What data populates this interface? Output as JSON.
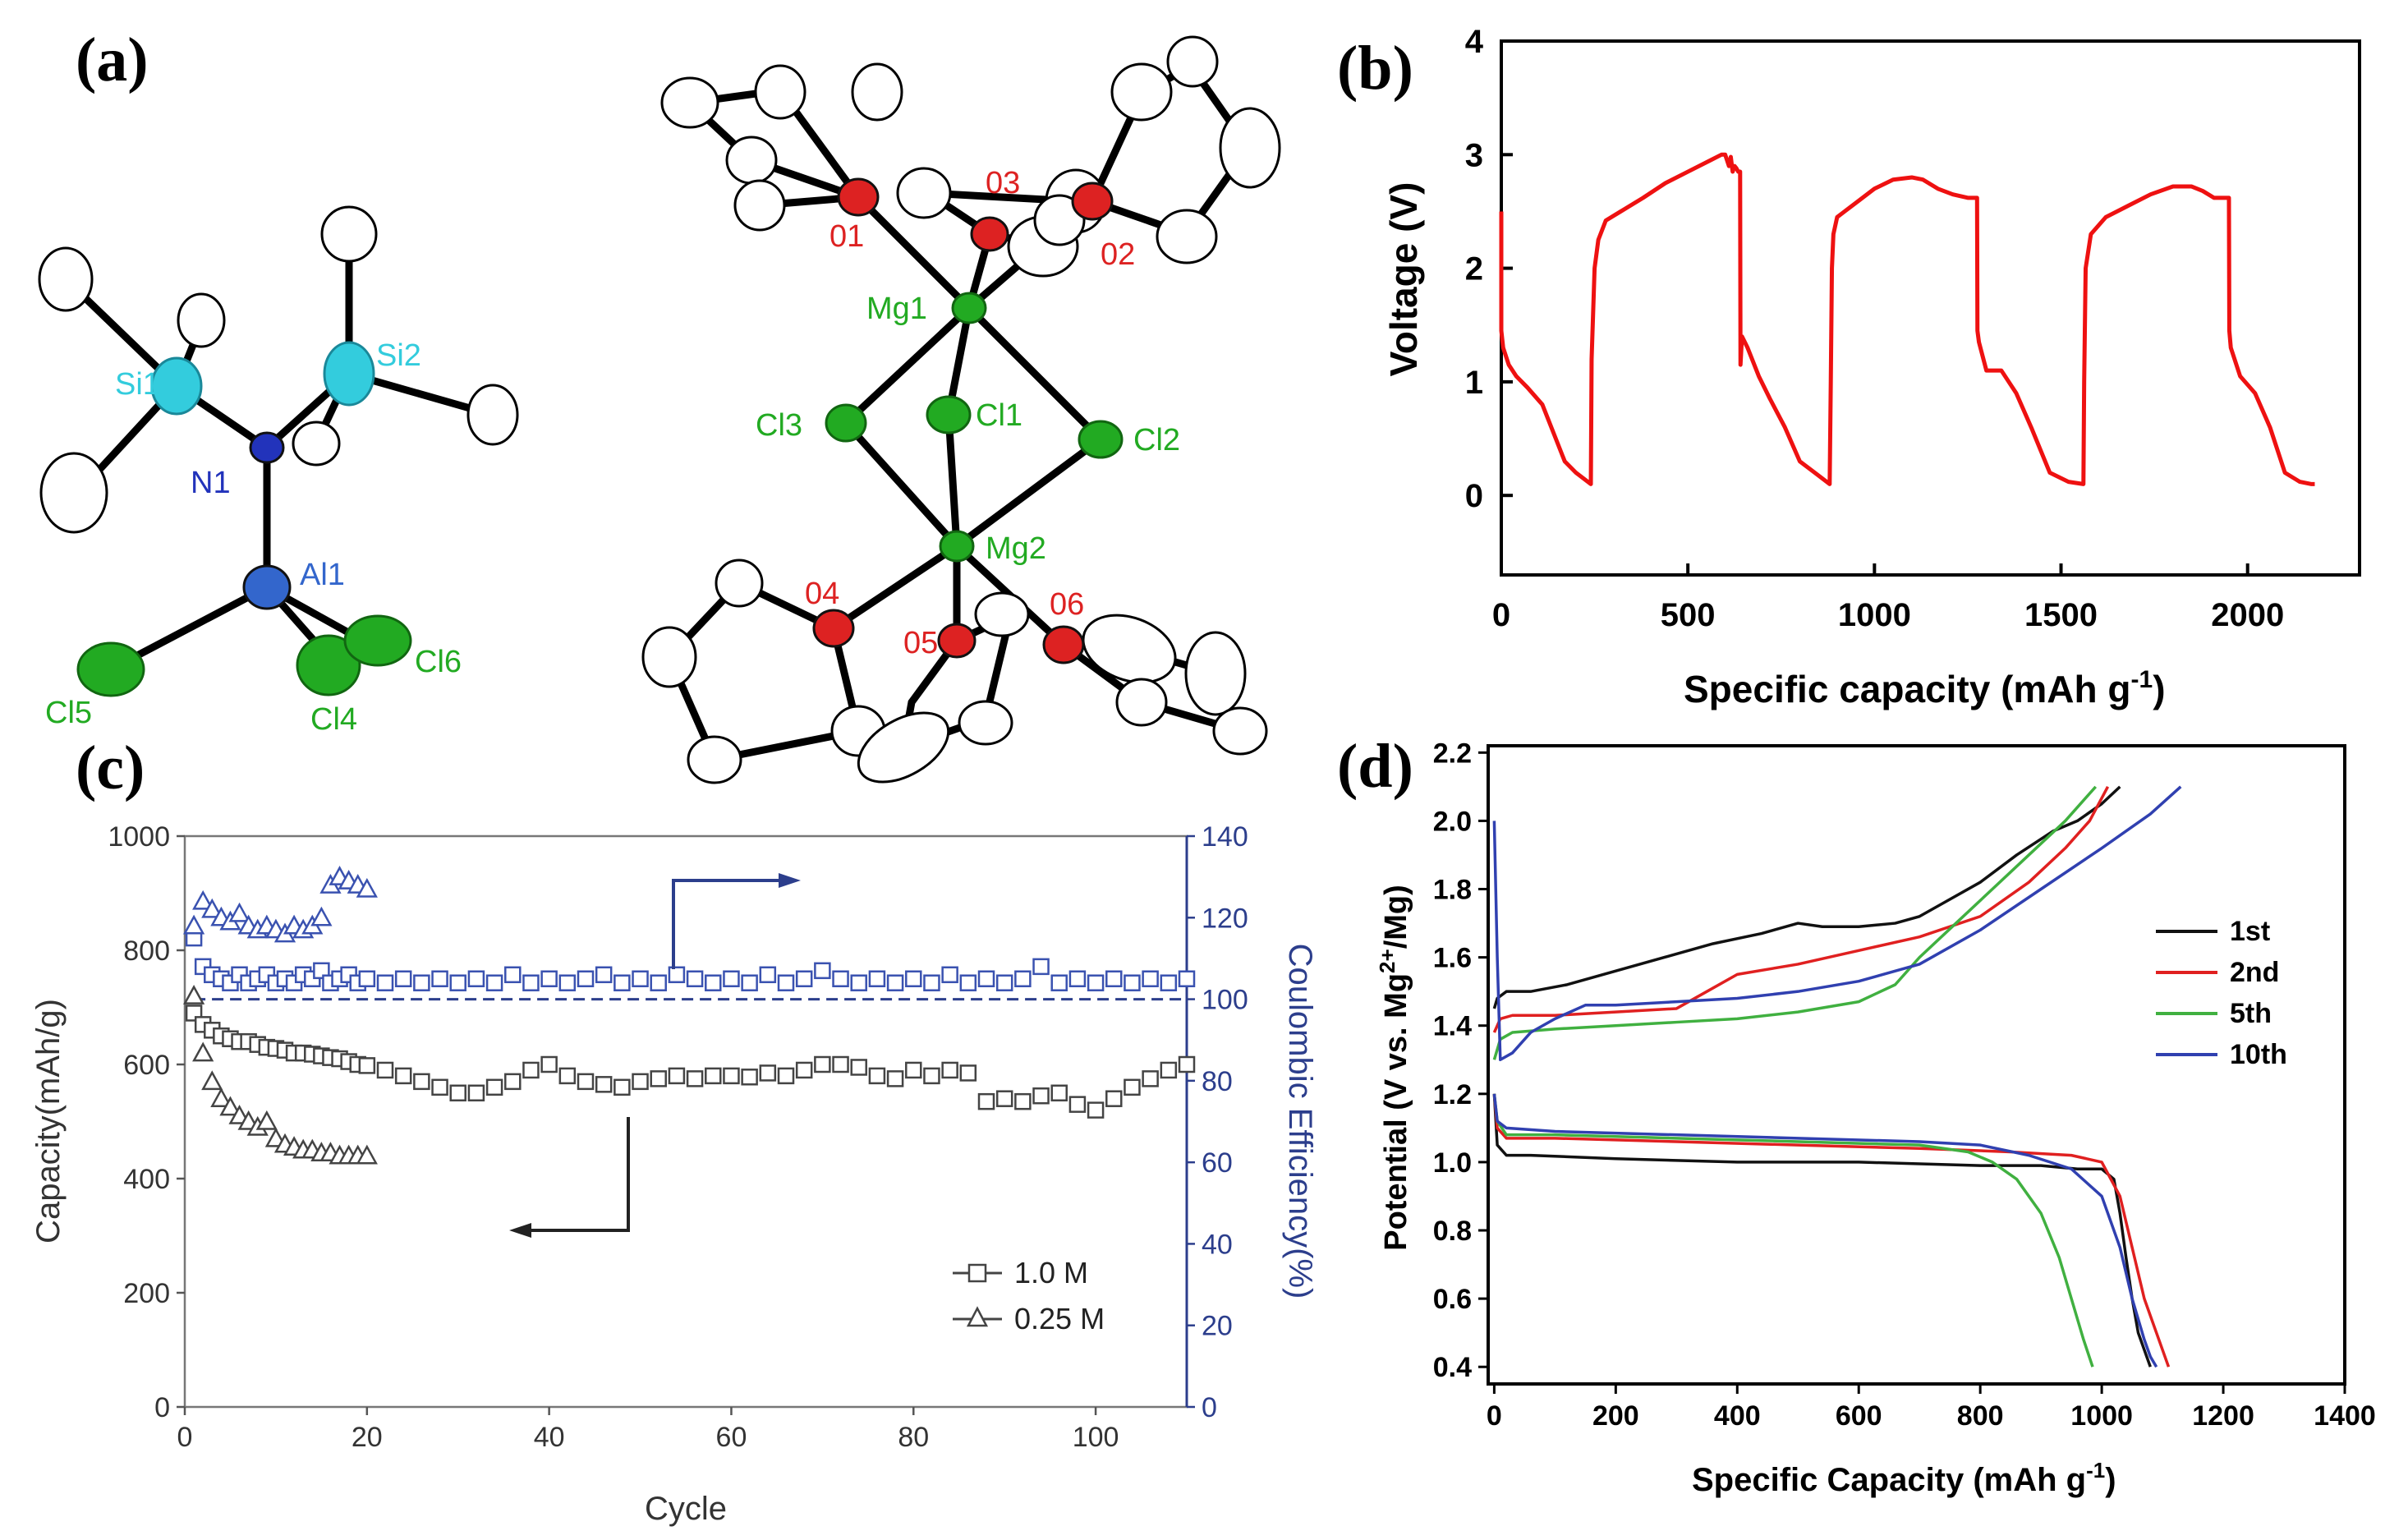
{
  "panels": {
    "a": "(a)",
    "b": "(b)",
    "c": "(c)",
    "d": "(d)"
  },
  "structure_left": {
    "atoms": [
      {
        "label": "Si1",
        "color": "#33ccdd"
      },
      {
        "label": "Si2",
        "color": "#33ccdd"
      },
      {
        "label": "N1",
        "color": "#2233bb"
      },
      {
        "label": "Al1",
        "color": "#3366cc"
      },
      {
        "label": "Cl5",
        "color": "#22aa22"
      },
      {
        "label": "Cl4",
        "color": "#22aa22"
      },
      {
        "label": "Cl6",
        "color": "#22aa22"
      }
    ]
  },
  "structure_right": {
    "atoms": [
      {
        "label": "01",
        "color": "#dd2222"
      },
      {
        "label": "03",
        "color": "#dd2222"
      },
      {
        "label": "02",
        "color": "#dd2222"
      },
      {
        "label": "Mg1",
        "color": "#22aa22"
      },
      {
        "label": "Cl3",
        "color": "#22aa22"
      },
      {
        "label": "Cl1",
        "color": "#22aa22"
      },
      {
        "label": "Cl2",
        "color": "#22aa22"
      },
      {
        "label": "Mg2",
        "color": "#22aa22"
      },
      {
        "label": "04",
        "color": "#dd2222"
      },
      {
        "label": "05",
        "color": "#dd2222"
      },
      {
        "label": "06",
        "color": "#dd2222"
      }
    ]
  },
  "chart_data": [
    {
      "id": "b",
      "type": "line",
      "xlabel": "Specific capacity (mAh g",
      "xlabel_sup": "-1",
      "xlabel_end": ")",
      "ylabel": "Voltage (V)",
      "xlim": [
        0,
        2300
      ],
      "ylim": [
        -0.7,
        4
      ],
      "xticks": [
        "0",
        "500",
        "1000",
        "1500",
        "2000"
      ],
      "xtick_values": [
        0,
        500,
        1000,
        1500,
        2000
      ],
      "yticks": [
        "0",
        "1",
        "2",
        "3",
        "4"
      ],
      "ytick_values": [
        0,
        1,
        2,
        3,
        4
      ],
      "color": "#ee1111",
      "x": [
        0,
        0,
        5,
        20,
        40,
        70,
        110,
        140,
        170,
        200,
        240,
        242,
        250,
        260,
        280,
        320,
        380,
        440,
        500,
        560,
        590,
        600,
        610,
        615,
        620,
        625,
        630,
        635,
        640,
        641,
        645,
        660,
        690,
        720,
        760,
        800,
        840,
        880,
        883,
        886,
        890,
        900,
        920,
        960,
        1000,
        1050,
        1100,
        1130,
        1170,
        1210,
        1250,
        1275,
        1276,
        1280,
        1300,
        1340,
        1380,
        1420,
        1470,
        1520,
        1560,
        1562,
        1566,
        1580,
        1620,
        1680,
        1740,
        1800,
        1850,
        1880,
        1910,
        1950,
        1951,
        1955,
        1980,
        2020,
        2060,
        2100,
        2140,
        2170,
        2180
      ],
      "y": [
        2.5,
        1.45,
        1.3,
        1.15,
        1.05,
        0.95,
        0.8,
        0.55,
        0.3,
        0.2,
        0.1,
        1.2,
        2.0,
        2.25,
        2.42,
        2.5,
        2.62,
        2.75,
        2.85,
        2.95,
        3.0,
        3.0,
        2.9,
        2.98,
        2.85,
        2.9,
        2.88,
        2.85,
        2.85,
        1.15,
        1.4,
        1.3,
        1.05,
        0.85,
        0.6,
        0.3,
        0.2,
        0.1,
        1.0,
        2.0,
        2.3,
        2.45,
        2.5,
        2.6,
        2.7,
        2.78,
        2.8,
        2.78,
        2.7,
        2.65,
        2.62,
        2.62,
        1.45,
        1.35,
        1.1,
        1.1,
        0.9,
        0.6,
        0.2,
        0.12,
        0.1,
        1.0,
        2.0,
        2.3,
        2.45,
        2.55,
        2.65,
        2.72,
        2.72,
        2.68,
        2.62,
        2.62,
        1.45,
        1.3,
        1.05,
        0.9,
        0.6,
        0.2,
        0.12,
        0.1,
        0.1
      ]
    },
    {
      "id": "c",
      "type": "scatter",
      "xlabel": "Cycle",
      "ylabel": "Capacity(mAh/g)",
      "y2label": "Coulombic Efficiency(%)",
      "xlim": [
        0,
        110
      ],
      "ylim": [
        0,
        1000
      ],
      "y2lim": [
        0,
        140
      ],
      "xticks": [
        "0",
        "20",
        "40",
        "60",
        "80",
        "100"
      ],
      "xtick_values": [
        0,
        20,
        40,
        60,
        80,
        100
      ],
      "yticks": [
        "0",
        "200",
        "400",
        "600",
        "800",
        "1000"
      ],
      "ytick_values": [
        0,
        200,
        400,
        600,
        800,
        1000
      ],
      "y2ticks": [
        "0",
        "20",
        "40",
        "60",
        "80",
        "100",
        "120",
        "140"
      ],
      "y2tick_values": [
        0,
        20,
        40,
        60,
        80,
        100,
        120,
        140
      ],
      "efficiency_reference": 100,
      "legend": [
        {
          "marker": "square",
          "label": "1.0 M"
        },
        {
          "marker": "triangle",
          "label": "0.25 M"
        }
      ],
      "series": [
        {
          "name": "1.0 M capacity",
          "axis": "left",
          "marker": "square",
          "color": "#444444",
          "x": [
            1,
            2,
            3,
            4,
            5,
            6,
            7,
            8,
            9,
            10,
            11,
            12,
            13,
            14,
            15,
            16,
            17,
            18,
            19,
            20,
            22,
            24,
            26,
            28,
            30,
            32,
            34,
            36,
            38,
            40,
            42,
            44,
            46,
            48,
            50,
            52,
            54,
            56,
            58,
            60,
            62,
            64,
            66,
            68,
            70,
            72,
            74,
            76,
            78,
            80,
            82,
            84,
            86,
            88,
            90,
            92,
            94,
            96,
            98,
            100,
            102,
            104,
            106,
            108,
            110
          ],
          "y": [
            690,
            670,
            660,
            650,
            645,
            640,
            640,
            635,
            630,
            628,
            625,
            620,
            620,
            618,
            615,
            612,
            610,
            605,
            600,
            598,
            590,
            580,
            570,
            560,
            550,
            550,
            560,
            570,
            590,
            600,
            580,
            570,
            565,
            560,
            570,
            575,
            580,
            575,
            580,
            580,
            578,
            585,
            580,
            590,
            600,
            600,
            595,
            580,
            575,
            590,
            580,
            590,
            585,
            535,
            540,
            535,
            545,
            550,
            530,
            520,
            540,
            560,
            575,
            590,
            600
          ]
        },
        {
          "name": "0.25 M capacity",
          "axis": "left",
          "marker": "triangle",
          "color": "#444444",
          "x": [
            1,
            2,
            3,
            4,
            5,
            6,
            7,
            8,
            9,
            10,
            11,
            12,
            13,
            14,
            15,
            16,
            17,
            18,
            19,
            20
          ],
          "y": [
            720,
            620,
            570,
            540,
            525,
            510,
            500,
            490,
            500,
            470,
            460,
            455,
            450,
            450,
            445,
            445,
            440,
            440,
            440,
            440
          ]
        },
        {
          "name": "1.0 M efficiency",
          "axis": "right",
          "marker": "square",
          "color": "#3a52b0",
          "x": [
            1,
            2,
            3,
            4,
            5,
            6,
            7,
            8,
            9,
            10,
            11,
            12,
            13,
            14,
            15,
            16,
            17,
            18,
            19,
            20,
            22,
            24,
            26,
            28,
            30,
            32,
            34,
            36,
            38,
            40,
            42,
            44,
            46,
            48,
            50,
            52,
            54,
            56,
            58,
            60,
            62,
            64,
            66,
            68,
            70,
            72,
            74,
            76,
            78,
            80,
            82,
            84,
            86,
            88,
            90,
            92,
            94,
            96,
            98,
            100,
            102,
            104,
            106,
            108,
            110
          ],
          "y": [
            115,
            108,
            106,
            105,
            104,
            106,
            104,
            105,
            106,
            104,
            105,
            104,
            106,
            105,
            107,
            104,
            105,
            106,
            104,
            105,
            104,
            105,
            104,
            105,
            104,
            105,
            104,
            106,
            104,
            105,
            104,
            105,
            106,
            104,
            105,
            104,
            106,
            105,
            104,
            105,
            104,
            106,
            104,
            105,
            107,
            105,
            104,
            105,
            104,
            105,
            104,
            106,
            104,
            105,
            104,
            105,
            108,
            104,
            105,
            104,
            105,
            104,
            105,
            104,
            105
          ]
        },
        {
          "name": "0.25 M efficiency",
          "axis": "right",
          "marker": "triangle",
          "color": "#3a52b0",
          "x": [
            1,
            2,
            3,
            4,
            5,
            6,
            7,
            8,
            9,
            10,
            11,
            12,
            13,
            14,
            15,
            16,
            17,
            18,
            19,
            20
          ],
          "y": [
            118,
            124,
            122,
            120,
            119,
            121,
            118,
            117,
            118,
            117,
            116,
            118,
            117,
            118,
            120,
            128,
            130,
            129,
            128,
            127
          ]
        }
      ]
    },
    {
      "id": "d",
      "type": "line",
      "xlabel": "Specific Capacity (mAh g",
      "xlabel_sup": "-1",
      "xlabel_end": ")",
      "ylabel": "Potential (V vs. Mg",
      "ylabel_sup": "2+",
      "ylabel_end": "/Mg)",
      "xlim": [
        -10,
        1400
      ],
      "ylim": [
        0.35,
        2.22
      ],
      "xticks": [
        "0",
        "200",
        "400",
        "600",
        "800",
        "1000",
        "1200",
        "1400"
      ],
      "xtick_values": [
        0,
        200,
        400,
        600,
        800,
        1000,
        1200,
        1400
      ],
      "yticks": [
        "0.4",
        "0.6",
        "0.8",
        "1.0",
        "1.2",
        "1.4",
        "1.6",
        "1.8",
        "2.0",
        "2.2"
      ],
      "ytick_values": [
        0.4,
        0.6,
        0.8,
        1.0,
        1.2,
        1.4,
        1.6,
        1.8,
        2.0,
        2.2
      ],
      "legend": [
        {
          "label": "1st",
          "color": "#111111"
        },
        {
          "label": "2nd",
          "color": "#e02020"
        },
        {
          "label": "5th",
          "color": "#40b040"
        },
        {
          "label": "10th",
          "color": "#3040b0"
        }
      ],
      "series": [
        {
          "name": "1st",
          "color": "#111111",
          "charge_x": [
            0,
            5,
            20,
            60,
            120,
            200,
            280,
            360,
            440,
            500,
            540,
            600,
            660,
            700,
            740,
            800,
            860,
            920,
            960,
            1000,
            1030
          ],
          "charge_y": [
            1.45,
            1.48,
            1.5,
            1.5,
            1.52,
            1.56,
            1.6,
            1.64,
            1.67,
            1.7,
            1.69,
            1.69,
            1.7,
            1.72,
            1.76,
            1.82,
            1.9,
            1.97,
            2.0,
            2.05,
            2.1
          ],
          "discharge_x": [
            0,
            5,
            20,
            60,
            200,
            400,
            600,
            800,
            900,
            960,
            1000,
            1020,
            1030,
            1040,
            1050,
            1060,
            1070,
            1080
          ],
          "discharge_y": [
            1.2,
            1.05,
            1.02,
            1.02,
            1.01,
            1.0,
            1.0,
            0.99,
            0.99,
            0.98,
            0.98,
            0.95,
            0.85,
            0.72,
            0.6,
            0.5,
            0.45,
            0.4
          ]
        },
        {
          "name": "2nd",
          "color": "#e02020",
          "charge_x": [
            0,
            10,
            30,
            100,
            200,
            300,
            350,
            400,
            500,
            600,
            700,
            800,
            880,
            940,
            980,
            1010
          ],
          "charge_y": [
            1.38,
            1.42,
            1.43,
            1.43,
            1.44,
            1.45,
            1.5,
            1.55,
            1.58,
            1.62,
            1.66,
            1.72,
            1.82,
            1.92,
            2.0,
            2.1
          ],
          "discharge_x": [
            0,
            5,
            20,
            100,
            300,
            500,
            700,
            850,
            950,
            1000,
            1030,
            1050,
            1070,
            1090,
            1100,
            1110
          ],
          "discharge_y": [
            1.2,
            1.1,
            1.07,
            1.07,
            1.06,
            1.05,
            1.04,
            1.03,
            1.02,
            1.0,
            0.9,
            0.75,
            0.6,
            0.5,
            0.45,
            0.4
          ]
        },
        {
          "name": "5th",
          "color": "#40b040",
          "charge_x": [
            0,
            10,
            30,
            100,
            200,
            300,
            400,
            500,
            600,
            660,
            700,
            760,
            820,
            880,
            940,
            990
          ],
          "charge_y": [
            1.3,
            1.36,
            1.38,
            1.39,
            1.4,
            1.41,
            1.42,
            1.44,
            1.47,
            1.52,
            1.6,
            1.7,
            1.8,
            1.9,
            2.0,
            2.1
          ],
          "discharge_x": [
            0,
            5,
            20,
            100,
            300,
            500,
            700,
            780,
            820,
            860,
            900,
            930,
            950,
            970,
            985
          ],
          "discharge_y": [
            1.2,
            1.12,
            1.08,
            1.08,
            1.07,
            1.06,
            1.05,
            1.03,
            1.0,
            0.95,
            0.85,
            0.72,
            0.6,
            0.48,
            0.4
          ]
        },
        {
          "name": "10th",
          "color": "#3040b0",
          "charge_x": [
            0,
            5,
            10,
            30,
            60,
            100,
            150,
            200,
            300,
            400,
            500,
            600,
            700,
            800,
            900,
            1000,
            1080,
            1130
          ],
          "charge_y": [
            2.0,
            1.6,
            1.3,
            1.32,
            1.38,
            1.42,
            1.46,
            1.46,
            1.47,
            1.48,
            1.5,
            1.53,
            1.58,
            1.68,
            1.8,
            1.92,
            2.02,
            2.1
          ],
          "discharge_x": [
            0,
            5,
            20,
            100,
            300,
            500,
            700,
            800,
            880,
            950,
            1000,
            1030,
            1050,
            1070,
            1080,
            1090
          ],
          "discharge_y": [
            1.2,
            1.12,
            1.1,
            1.09,
            1.08,
            1.07,
            1.06,
            1.05,
            1.02,
            0.98,
            0.9,
            0.75,
            0.6,
            0.48,
            0.43,
            0.4
          ]
        }
      ]
    }
  ]
}
